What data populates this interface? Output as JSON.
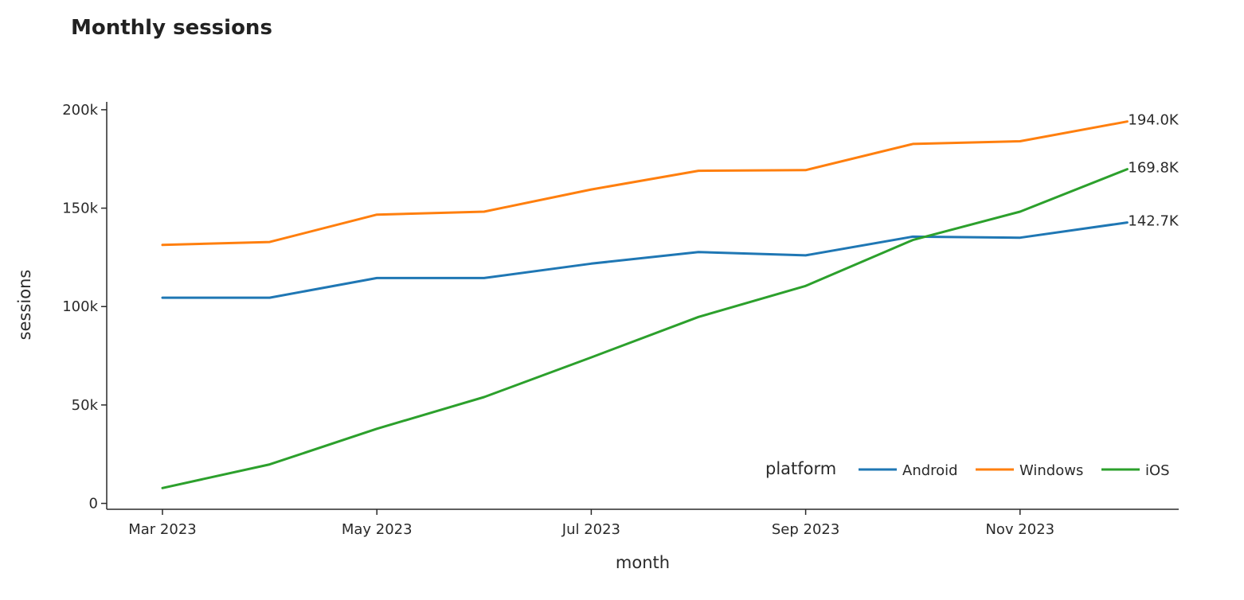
{
  "chart_data": {
    "type": "line",
    "title": "Monthly sessions",
    "xlabel": "month",
    "ylabel": "sessions",
    "x": [
      "2023-03",
      "2023-04",
      "2023-05",
      "2023-06",
      "2023-07",
      "2023-08",
      "2023-09",
      "2023-10",
      "2023-11",
      "2023-12"
    ],
    "x_ticks": [
      {
        "value": "2023-03",
        "label": "Mar 2023"
      },
      {
        "value": "2023-05",
        "label": "May 2023"
      },
      {
        "value": "2023-07",
        "label": "Jul 2023"
      },
      {
        "value": "2023-09",
        "label": "Sep 2023"
      },
      {
        "value": "2023-11",
        "label": "Nov 2023"
      }
    ],
    "y_ticks": [
      {
        "value": 0,
        "label": "0"
      },
      {
        "value": 50000,
        "label": "50k"
      },
      {
        "value": 100000,
        "label": "100k"
      },
      {
        "value": 150000,
        "label": "150k"
      },
      {
        "value": 200000,
        "label": "200k"
      }
    ],
    "ylim": [
      -3000,
      204000
    ],
    "grid": false,
    "legend": {
      "title": "platform",
      "position": "bottom-right"
    },
    "series": [
      {
        "name": "Android",
        "color": "#1f77b4",
        "values": [
          104500,
          104500,
          114500,
          114500,
          121800,
          127700,
          126000,
          135500,
          135000,
          142700
        ],
        "end_label": "142.7K"
      },
      {
        "name": "Windows",
        "color": "#ff7f0e",
        "values": [
          131300,
          132800,
          146700,
          148200,
          159500,
          169000,
          169300,
          182600,
          184000,
          194000
        ],
        "end_label": "194.0K"
      },
      {
        "name": "iOS",
        "color": "#2ca02c",
        "values": [
          7800,
          19800,
          37900,
          54000,
          74200,
          94700,
          110500,
          133800,
          148200,
          169800
        ],
        "end_label": "169.8K"
      }
    ]
  }
}
